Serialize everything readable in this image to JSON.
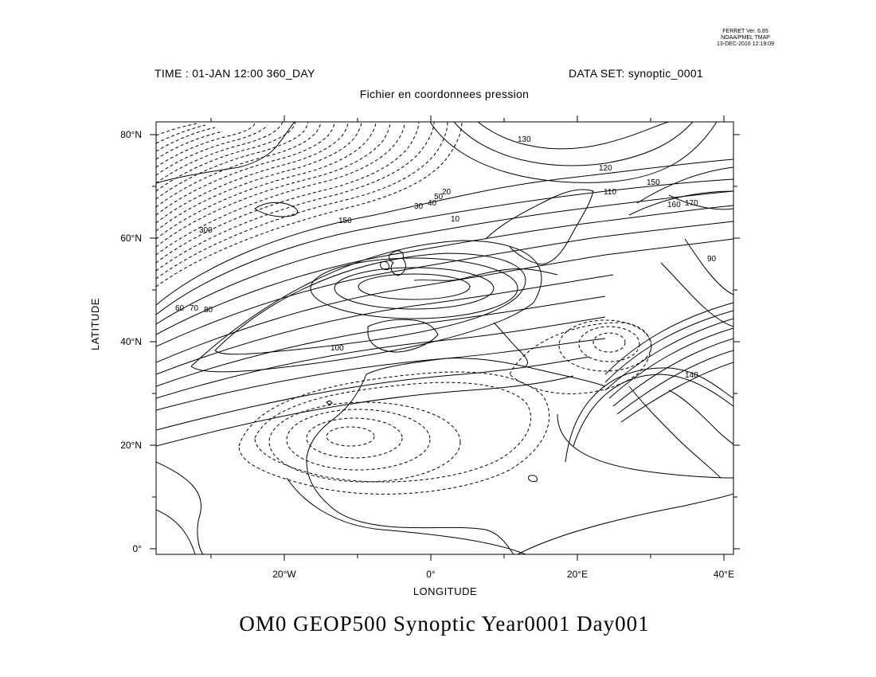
{
  "stamp": {
    "line1": "FERRET Ver. 6.85",
    "line2": "NOAA/PMEL TMAP",
    "line3": "13-DEC-2016 12:19:09"
  },
  "header": {
    "time": "TIME : 01-JAN 12:00 360_DAY",
    "dataset": "DATA SET: synoptic_0001",
    "subtitle": "Fichier en coordonnees pression"
  },
  "axes": {
    "y_title": "LATITUDE",
    "x_title": "LONGITUDE",
    "y_ticks": [
      "80°N",
      "60°N",
      "40°N",
      "20°N",
      "0°"
    ],
    "x_ticks": [
      "20°W",
      "0°",
      "20°E",
      "40°E"
    ],
    "lon_range": [
      -37,
      42
    ],
    "lat_range": [
      -1,
      82
    ]
  },
  "contour_labels": [
    "130",
    "120",
    "110",
    "150",
    "160",
    "170",
    "300",
    "60",
    "70",
    "80",
    "10",
    "30",
    "40",
    "50",
    "20",
    "90",
    "100",
    "140",
    "150"
  ],
  "title": "OM0 GEOP500 Synoptic Year0001 Day001"
}
